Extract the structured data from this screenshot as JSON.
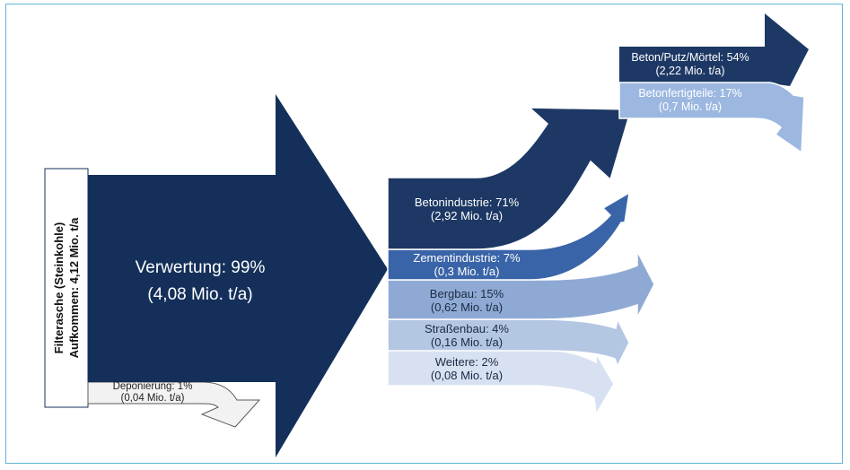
{
  "colors": {
    "frame": "#5fb6d4",
    "main": "#14305a",
    "beton": "#1d3864",
    "zement": "#3a64a8",
    "bergbau": "#8eaad4",
    "strassenbau": "#b3c6e2",
    "weitere": "#d7e1f1",
    "deponierung": "#f2f2f2",
    "fertigteile": "#9cb8e0"
  },
  "source": {
    "line1": "Filterasche (Steinkohle)",
    "line2": "Aufkommen: 4,12 Mio. t/a"
  },
  "main": {
    "title": "Verwertung: 99%",
    "value": "(4,08 Mio. t/a)"
  },
  "disposal": {
    "title": "Deponierung: 1%",
    "value": "(0,04 Mio. t/a)"
  },
  "branches": [
    {
      "title": "Betonindustrie: 71%",
      "value": "(2,92 Mio. t/a)"
    },
    {
      "title": "Zementindustrie: 7%",
      "value": "(0,3 Mio. t/a)"
    },
    {
      "title": "Bergbau: 15%",
      "value": "(0,62 Mio. t/a)"
    },
    {
      "title": "Straßenbau: 4%",
      "value": "(0,16 Mio. t/a)"
    },
    {
      "title": "Weitere: 2%",
      "value": "(0,08 Mio. t/a)"
    }
  ],
  "sub_branches": [
    {
      "title": "Beton/Putz/Mörtel: 54%",
      "value": "(2,22 Mio. t/a)"
    },
    {
      "title": "Betonfertigteile: 17%",
      "value": "(0,7 Mio. t/a)"
    }
  ]
}
